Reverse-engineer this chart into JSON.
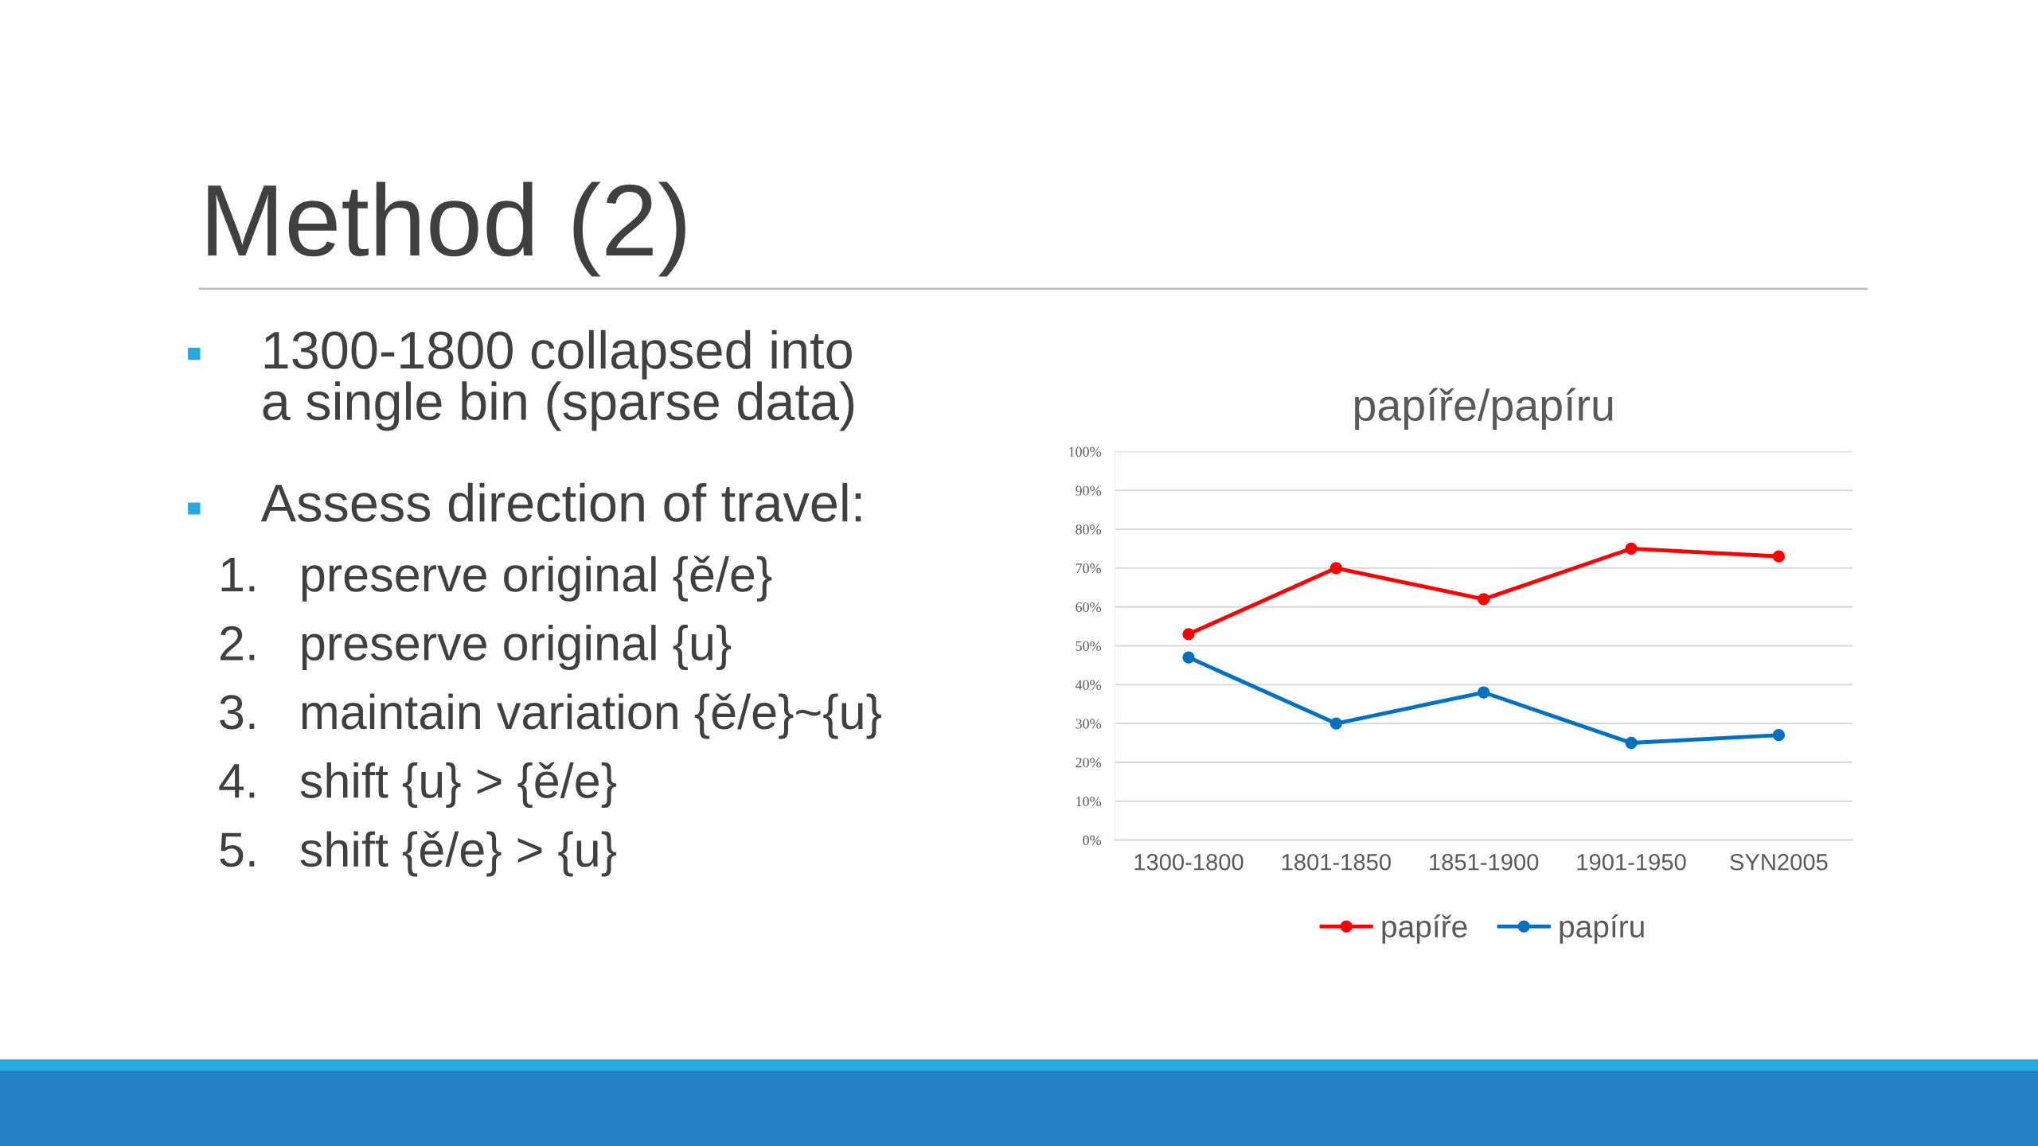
{
  "chart_data": {
    "type": "line",
    "title": "papíře/papíru",
    "categories": [
      "1300-1800",
      "1801-1850",
      "1851-1900",
      "1901-1950",
      "SYN2005"
    ],
    "series": [
      {
        "name": "papíře",
        "color": "#ff0000",
        "values": [
          53,
          70,
          62,
          75,
          73
        ]
      },
      {
        "name": "papíru",
        "color": "#0070c0",
        "values": [
          47,
          30,
          38,
          25,
          27
        ]
      }
    ],
    "ylim": [
      0,
      100
    ],
    "yticks": [
      {
        "value": 0,
        "label": "0%"
      },
      {
        "value": 10,
        "label": "10%"
      },
      {
        "value": 20,
        "label": "20%"
      },
      {
        "value": 30,
        "label": "30%"
      },
      {
        "value": 40,
        "label": "40%"
      },
      {
        "value": 50,
        "label": "50%"
      },
      {
        "value": 60,
        "label": "60%"
      },
      {
        "value": 70,
        "label": "70%"
      },
      {
        "value": 80,
        "label": "80%"
      },
      {
        "value": 90,
        "label": "90%"
      },
      {
        "value": 100,
        "label": "100%"
      }
    ],
    "grid": "y",
    "legend": "bottom",
    "marker": "circle",
    "line_style": "solid",
    "annotations": [
      "Method (2)",
      "1300-1800 collapsed into\na single bin (sparse data)",
      "Assess direction of travel:",
      "1.   preserve original {ě/e}",
      "2.   preserve original {u}",
      "3.   maintain variation {ě/e}~{u}",
      "4.   shift {u} > {ě/e}",
      "5.   shift {ě/e} > {u}"
    ]
  }
}
